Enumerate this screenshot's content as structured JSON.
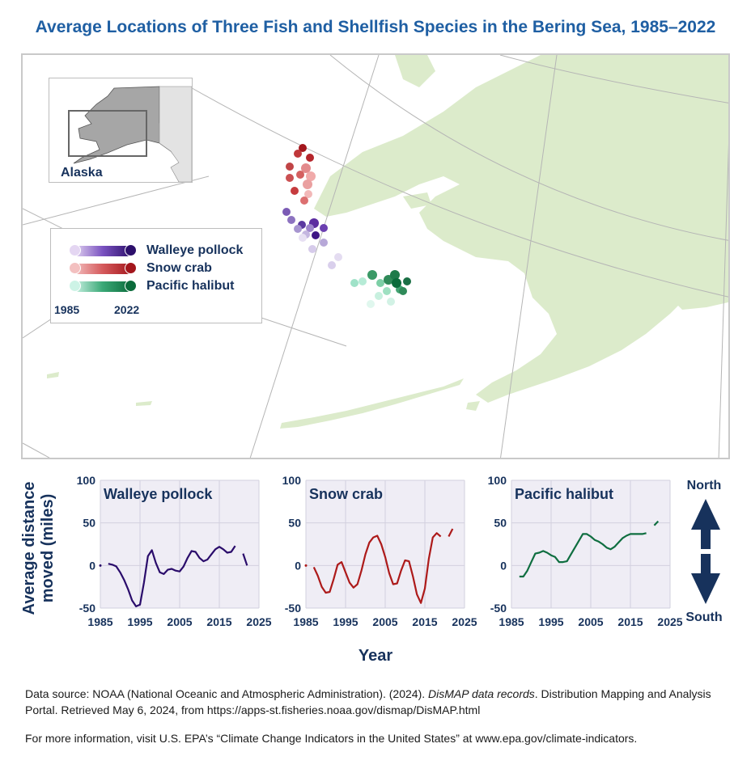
{
  "title": "Average Locations of Three Fish and Shellfish Species in the Bering Sea, 1985–2022",
  "inset": {
    "label": "Alaska"
  },
  "legend": {
    "items": [
      {
        "label": "Walleye pollock",
        "color_light": "#e4d6f2",
        "color_dark": "#2c0f6b"
      },
      {
        "label": "Snow crab",
        "color_light": "#f3c0c0",
        "color_dark": "#a3161c"
      },
      {
        "label": "Pacific halibut",
        "color_light": "#cdf3e6",
        "color_dark": "#0b6b3b"
      }
    ],
    "year_start": "1985",
    "year_end": "2022"
  },
  "axes": {
    "ylabel": "Average distance moved (miles)",
    "xlabel": "Year",
    "north_label": "North",
    "south_label": "South"
  },
  "chart_data": [
    {
      "type": "line",
      "title": "Walleye pollock",
      "color": "#2a0c6b",
      "xlim": [
        1985,
        2025
      ],
      "ylim": [
        -50,
        100
      ],
      "xticks": [
        "1985",
        "1995",
        "2005",
        "2015",
        "2025"
      ],
      "yticks": [
        "100",
        "50",
        "0",
        "-50"
      ],
      "segments": [
        {
          "x": [
            1985
          ],
          "y": [
            0
          ]
        },
        {
          "x": [
            1987,
            1988,
            1989,
            1990,
            1991,
            1992,
            1993,
            1994,
            1995,
            1996,
            1997,
            1998,
            1999,
            2000,
            2001,
            2002,
            2003,
            2004,
            2005,
            2006,
            2007,
            2008,
            2009,
            2010,
            2011,
            2012,
            2013,
            2014,
            2015,
            2016,
            2017,
            2018,
            2019
          ],
          "y": [
            2,
            1,
            -1,
            -8,
            -17,
            -28,
            -41,
            -48,
            -46,
            -20,
            11,
            18,
            3,
            -8,
            -10,
            -5,
            -4,
            -6,
            -7,
            -1,
            9,
            17,
            16,
            9,
            5,
            7,
            13,
            19,
            22,
            19,
            15,
            16,
            23
          ]
        },
        {
          "x": [
            2021,
            2022
          ],
          "y": [
            14,
            0
          ]
        }
      ]
    },
    {
      "type": "line",
      "title": "Snow crab",
      "color": "#ad1a1a",
      "xlim": [
        1985,
        2025
      ],
      "ylim": [
        -50,
        100
      ],
      "xticks": [
        "1985",
        "1995",
        "2005",
        "2015",
        "2025"
      ],
      "yticks": [
        "100",
        "50",
        "0",
        "-50"
      ],
      "segments": [
        {
          "x": [
            1985
          ],
          "y": [
            0
          ]
        },
        {
          "x": [
            1987,
            1988,
            1989,
            1990,
            1991,
            1992,
            1993,
            1994,
            1995,
            1996,
            1997,
            1998,
            1999,
            2000,
            2001,
            2002,
            2003,
            2004,
            2005,
            2006,
            2007,
            2008,
            2009,
            2010,
            2011,
            2012,
            2013,
            2014,
            2015,
            2016,
            2017,
            2018,
            2019
          ],
          "y": [
            -2,
            -12,
            -25,
            -32,
            -31,
            -16,
            1,
            4,
            -8,
            -20,
            -26,
            -22,
            -6,
            13,
            27,
            33,
            35,
            25,
            10,
            -9,
            -22,
            -21,
            -6,
            6,
            5,
            -13,
            -34,
            -44,
            -27,
            8,
            33,
            38,
            34
          ]
        },
        {
          "x": [
            2021,
            2022
          ],
          "y": [
            34,
            43
          ]
        }
      ]
    },
    {
      "type": "line",
      "title": "Pacific halibut",
      "color": "#0f6e40",
      "xlim": [
        1985,
        2025
      ],
      "ylim": [
        -50,
        100
      ],
      "xticks": [
        "1985",
        "1995",
        "2005",
        "2015",
        "2025"
      ],
      "yticks": [
        "100",
        "50",
        "0",
        "-50"
      ],
      "segments": [
        {
          "x": [
            1987,
            1988,
            1989,
            1990,
            1991,
            1992,
            1993,
            1994,
            1995,
            1996,
            1997,
            1998,
            1999,
            2000,
            2001,
            2002,
            2003,
            2004,
            2005,
            2006,
            2007,
            2008,
            2009,
            2010,
            2011,
            2012,
            2013,
            2014,
            2015,
            2016,
            2017,
            2018,
            2019
          ],
          "y": [
            -13,
            -13,
            -6,
            4,
            14,
            15,
            17,
            15,
            12,
            10,
            4,
            4,
            5,
            13,
            21,
            29,
            37,
            37,
            34,
            30,
            28,
            25,
            21,
            19,
            22,
            27,
            32,
            35,
            37,
            37,
            37,
            37,
            38
          ]
        },
        {
          "x": [
            2021,
            2022
          ],
          "y": [
            47,
            52
          ]
        }
      ]
    }
  ],
  "source": {
    "prefix": "Data source: NOAA (National Oceanic and Atmospheric Administration). (2024). ",
    "italic": "DisMAP data records",
    "suffix": ". Distribution Mapping and Analysis Portal. Retrieved May 6, 2024, from https://apps-st.fisheries.noaa.gov/dismap/DisMAP.html"
  },
  "more_info": "For more information, visit U.S. EPA’s “Climate Change Indicators in the United States” at www.epa.gov/climate-indicators."
}
